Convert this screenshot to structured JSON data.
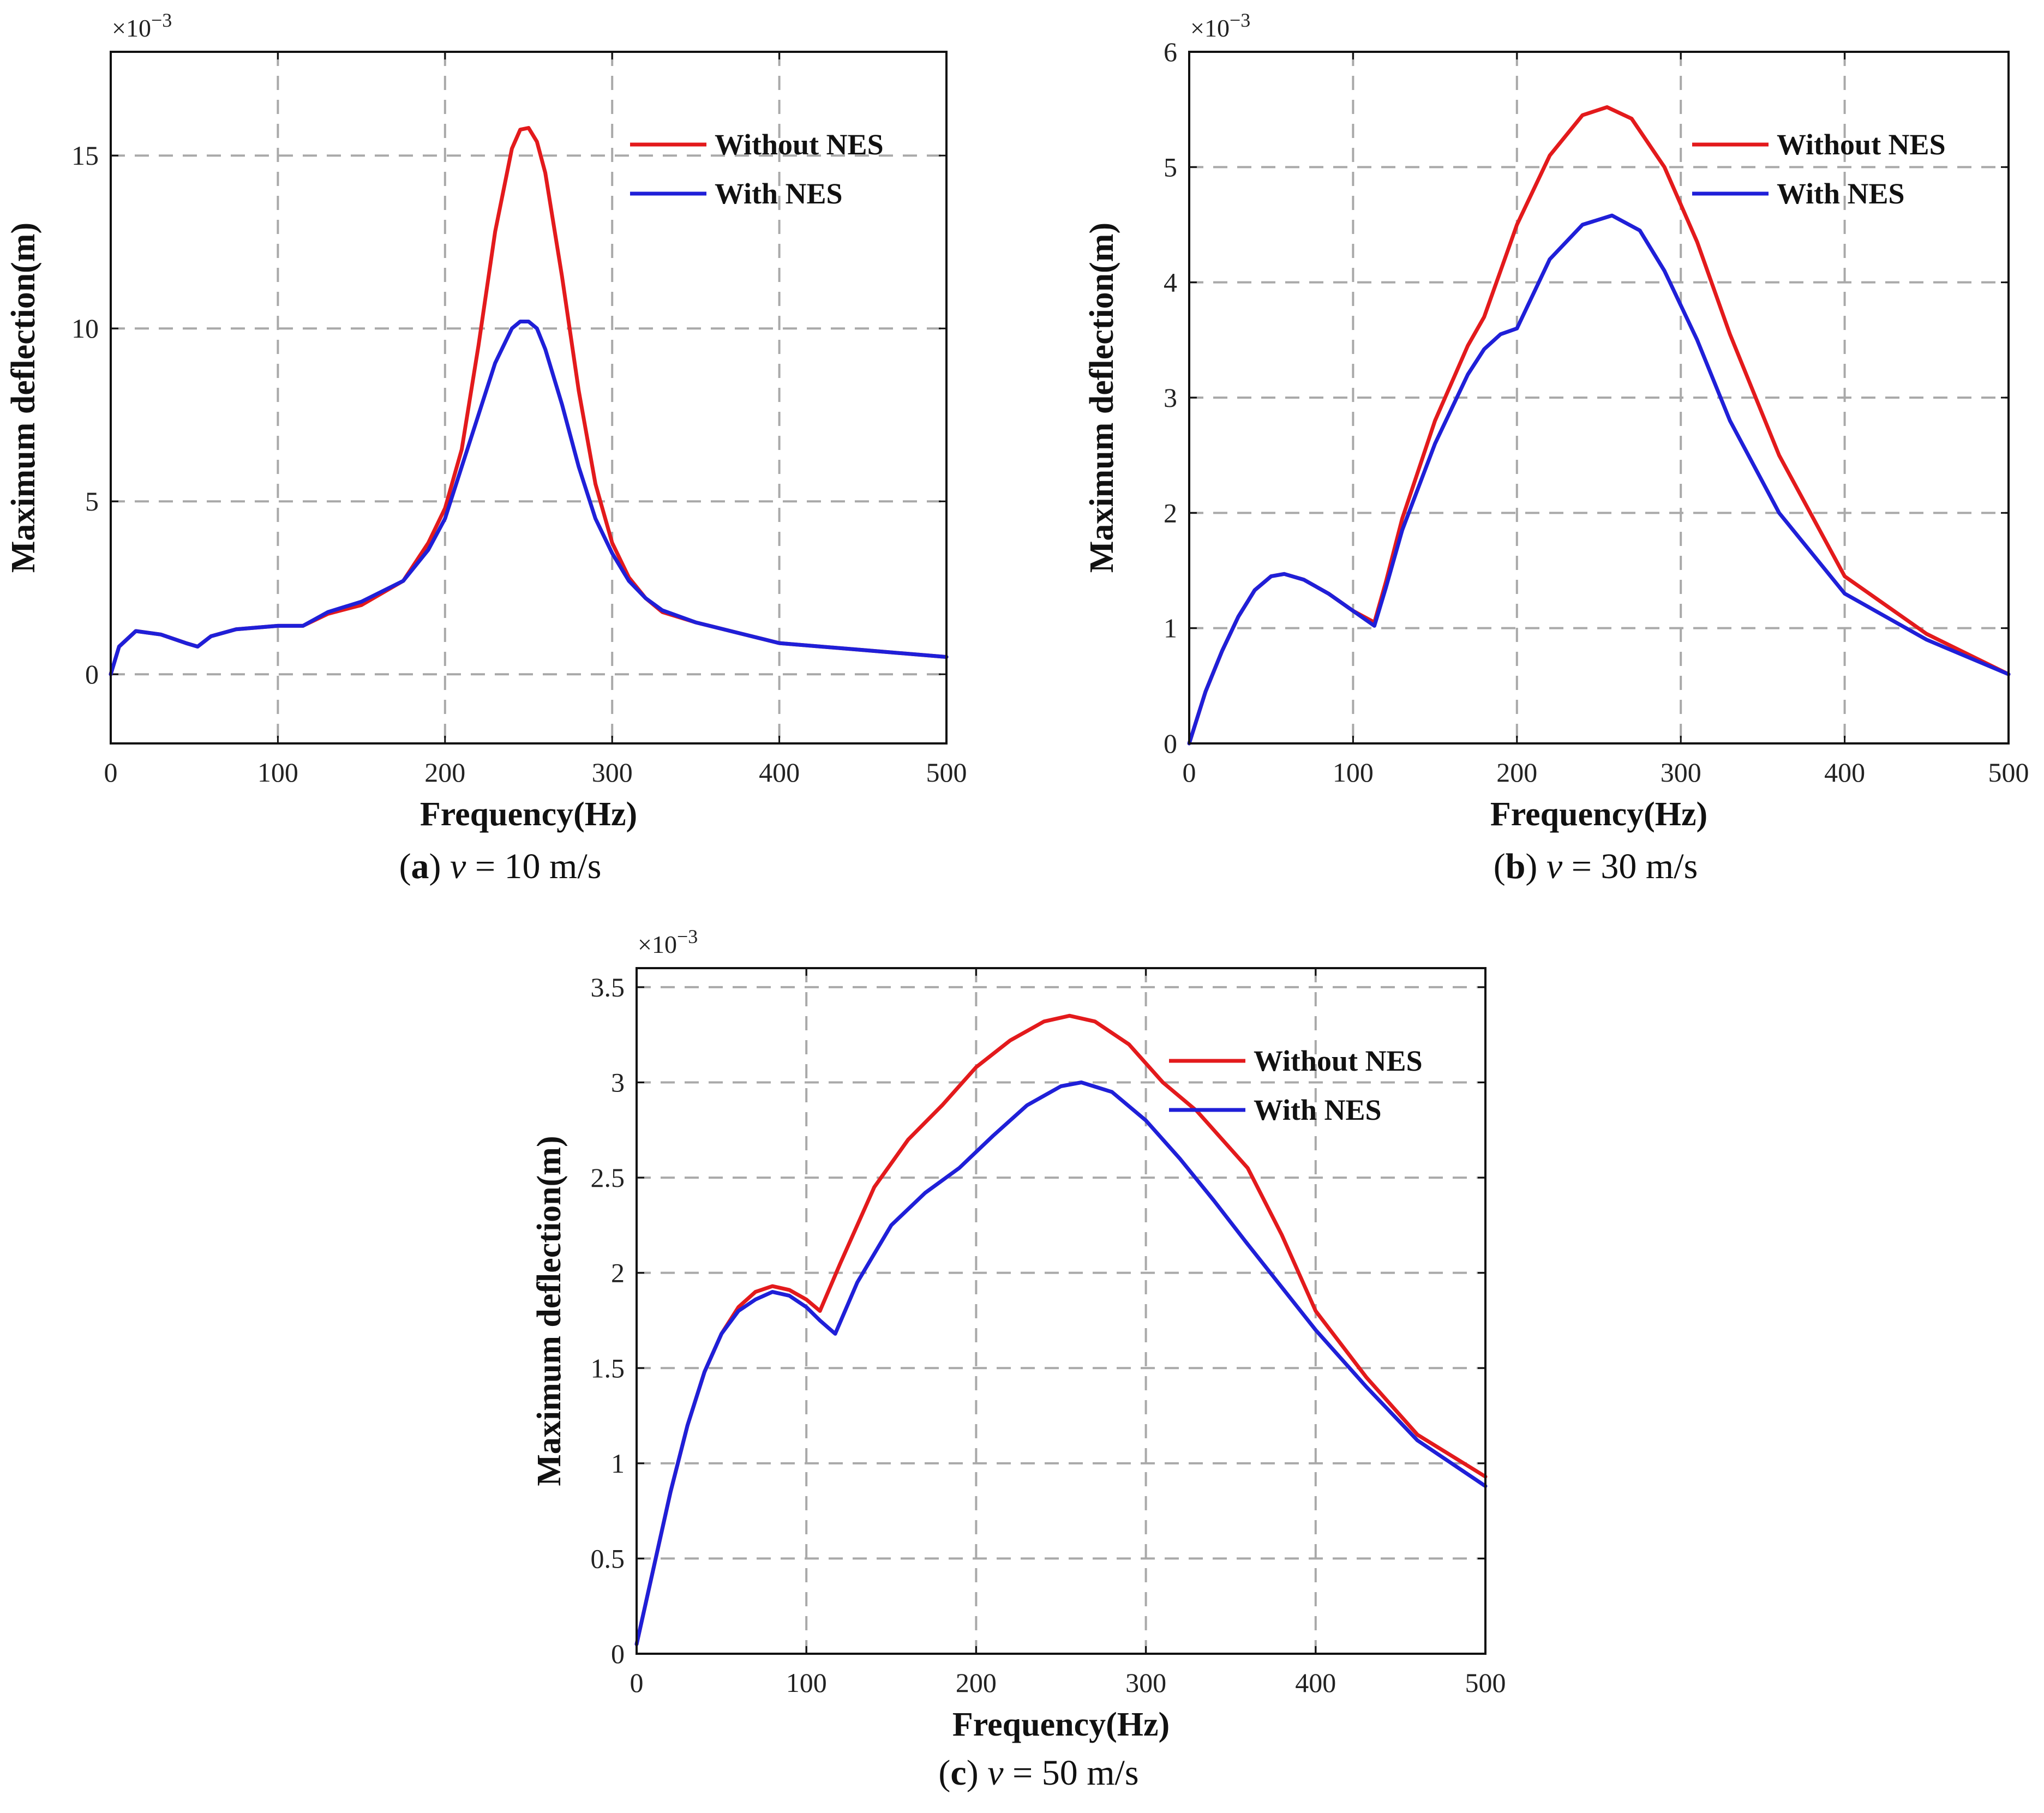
{
  "chart_data": [
    {
      "type": "line",
      "caption": {
        "letter": "a",
        "var": "v",
        "text": " = 10 m/s"
      },
      "xlabel": "Frequency(Hz)",
      "ylabel": "Maximum deflection(m)",
      "multiplier": "×10",
      "multiplier_exp": "−3",
      "xlim": [
        0,
        500
      ],
      "ylim": [
        -2,
        18
      ],
      "xticks": [
        0,
        100,
        200,
        300,
        400,
        500
      ],
      "yticks": [
        0,
        5,
        10,
        15
      ],
      "grid": true,
      "legend": "top-right",
      "series": [
        {
          "name": "Without NES",
          "color": "#e31a1c",
          "x": [
            0,
            5,
            15,
            30,
            45,
            52,
            60,
            75,
            100,
            115,
            130,
            150,
            175,
            190,
            200,
            210,
            220,
            230,
            240,
            245,
            250,
            255,
            260,
            270,
            280,
            290,
            300,
            310,
            320,
            330,
            350,
            375,
            400,
            450,
            500
          ],
          "y": [
            0,
            0.8,
            1.25,
            1.15,
            0.9,
            0.8,
            1.1,
            1.3,
            1.4,
            1.4,
            1.75,
            2.0,
            2.7,
            3.8,
            4.8,
            6.5,
            9.5,
            12.8,
            15.2,
            15.75,
            15.8,
            15.4,
            14.5,
            11.5,
            8.2,
            5.5,
            3.8,
            2.8,
            2.2,
            1.8,
            1.5,
            1.2,
            0.9,
            0.7,
            0.5
          ]
        },
        {
          "name": "With NES",
          "color": "#1f1fd8",
          "x": [
            0,
            5,
            15,
            30,
            45,
            52,
            60,
            75,
            100,
            115,
            130,
            150,
            175,
            190,
            200,
            210,
            220,
            230,
            240,
            245,
            250,
            255,
            260,
            270,
            280,
            290,
            300,
            310,
            320,
            330,
            350,
            375,
            400,
            450,
            500
          ],
          "y": [
            0,
            0.8,
            1.25,
            1.15,
            0.9,
            0.8,
            1.1,
            1.3,
            1.4,
            1.4,
            1.8,
            2.1,
            2.7,
            3.6,
            4.5,
            6.0,
            7.5,
            9.0,
            10.0,
            10.2,
            10.2,
            10.0,
            9.4,
            7.8,
            6.0,
            4.5,
            3.5,
            2.7,
            2.2,
            1.85,
            1.5,
            1.2,
            0.9,
            0.7,
            0.5
          ]
        }
      ]
    },
    {
      "type": "line",
      "caption": {
        "letter": "b",
        "var": "v",
        "text": " = 30 m/s"
      },
      "xlabel": "Frequency(Hz)",
      "ylabel": "Maximum deflection(m)",
      "multiplier": "×10",
      "multiplier_exp": "−3",
      "xlim": [
        0,
        500
      ],
      "ylim": [
        0,
        6
      ],
      "xticks": [
        0,
        100,
        200,
        300,
        400,
        500
      ],
      "yticks": [
        0,
        1,
        2,
        3,
        4,
        5,
        6
      ],
      "grid": true,
      "legend": "top-right",
      "series": [
        {
          "name": "Without NES",
          "color": "#e31a1c",
          "x": [
            0,
            10,
            20,
            30,
            40,
            50,
            58,
            70,
            85,
            100,
            113,
            120,
            130,
            150,
            170,
            180,
            190,
            200,
            220,
            240,
            255,
            270,
            290,
            310,
            330,
            360,
            400,
            450,
            500
          ],
          "y": [
            0,
            0.45,
            0.8,
            1.1,
            1.33,
            1.45,
            1.47,
            1.42,
            1.3,
            1.15,
            1.05,
            1.4,
            1.95,
            2.8,
            3.45,
            3.7,
            4.1,
            4.5,
            5.1,
            5.45,
            5.52,
            5.42,
            5.0,
            4.35,
            3.55,
            2.5,
            1.45,
            0.95,
            0.6
          ]
        },
        {
          "name": "With NES",
          "color": "#1f1fd8",
          "x": [
            0,
            10,
            20,
            30,
            40,
            50,
            58,
            70,
            85,
            100,
            113,
            120,
            130,
            150,
            170,
            180,
            190,
            200,
            220,
            240,
            258,
            275,
            290,
            310,
            330,
            360,
            400,
            450,
            500
          ],
          "y": [
            0,
            0.45,
            0.8,
            1.1,
            1.33,
            1.45,
            1.47,
            1.42,
            1.3,
            1.15,
            1.02,
            1.35,
            1.85,
            2.6,
            3.2,
            3.42,
            3.55,
            3.6,
            4.2,
            4.5,
            4.58,
            4.45,
            4.1,
            3.5,
            2.8,
            2.0,
            1.3,
            0.9,
            0.6
          ]
        }
      ]
    },
    {
      "type": "line",
      "caption": {
        "letter": "c",
        "var": "v",
        "text": " = 50 m/s"
      },
      "xlabel": "Frequency(Hz)",
      "ylabel": "Maximum deflection(m)",
      "multiplier": "×10",
      "multiplier_exp": "−3",
      "xlim": [
        0,
        500
      ],
      "ylim": [
        0,
        3.6
      ],
      "xticks": [
        0,
        100,
        200,
        300,
        400,
        500
      ],
      "yticks": [
        0,
        0.5,
        1,
        1.5,
        2,
        2.5,
        3,
        3.5
      ],
      "grid": true,
      "legend": "top-right",
      "series": [
        {
          "name": "Without NES",
          "color": "#e31a1c",
          "x": [
            0,
            10,
            20,
            30,
            40,
            50,
            60,
            70,
            80,
            90,
            100,
            108,
            120,
            140,
            160,
            180,
            200,
            220,
            240,
            255,
            270,
            290,
            310,
            330,
            360,
            380,
            400,
            430,
            460,
            500
          ],
          "y": [
            0.05,
            0.45,
            0.85,
            1.2,
            1.48,
            1.68,
            1.82,
            1.9,
            1.93,
            1.91,
            1.86,
            1.8,
            2.05,
            2.45,
            2.7,
            2.88,
            3.08,
            3.22,
            3.32,
            3.35,
            3.32,
            3.2,
            3.0,
            2.85,
            2.55,
            2.2,
            1.8,
            1.45,
            1.15,
            0.93
          ]
        },
        {
          "name": "With NES",
          "color": "#1f1fd8",
          "x": [
            0,
            10,
            20,
            30,
            40,
            50,
            60,
            70,
            80,
            90,
            100,
            108,
            117,
            130,
            150,
            170,
            190,
            210,
            230,
            250,
            262,
            280,
            300,
            320,
            340,
            360,
            400,
            430,
            460,
            500
          ],
          "y": [
            0.05,
            0.45,
            0.85,
            1.2,
            1.48,
            1.68,
            1.8,
            1.86,
            1.9,
            1.88,
            1.82,
            1.75,
            1.68,
            1.95,
            2.25,
            2.42,
            2.55,
            2.72,
            2.88,
            2.98,
            3.0,
            2.95,
            2.8,
            2.6,
            2.38,
            2.15,
            1.7,
            1.4,
            1.12,
            0.88
          ]
        }
      ]
    }
  ]
}
